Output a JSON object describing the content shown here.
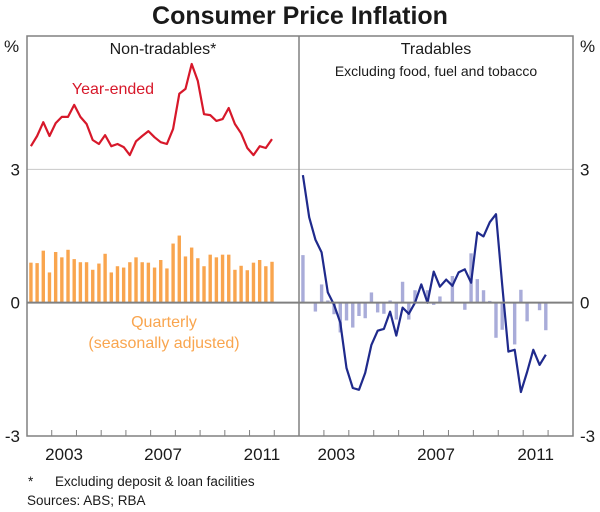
{
  "chart_data": {
    "type": "bar",
    "title": "Consumer Price Inflation",
    "y_unit_left": "%",
    "y_unit_right": "%",
    "ylim": [
      -3,
      6
    ],
    "yticks": [
      3,
      0,
      -3
    ],
    "yticks_labels": [
      "3",
      "0",
      "-3"
    ],
    "xlim": [
      2002,
      2013
    ],
    "xticks_labels": [
      "2003",
      "2007",
      "2011"
    ],
    "xticks_label_years": [
      2003,
      2007,
      2011
    ],
    "grid": true,
    "frequency": "quarterly",
    "start_period": "2002 Q1",
    "end_period": "2011 Q4",
    "panels": [
      {
        "title": "Non-tradables*",
        "subtitle": "",
        "series": [
          {
            "name": "Year-ended",
            "type": "line",
            "color": "#d7182a",
            "values": [
              3.52,
              3.75,
              4.06,
              3.75,
              4.04,
              4.18,
              4.18,
              4.45,
              4.18,
              4.02,
              3.66,
              3.57,
              3.77,
              3.52,
              3.57,
              3.5,
              3.32,
              3.63,
              3.75,
              3.86,
              3.72,
              3.61,
              3.57,
              3.91,
              4.7,
              4.81,
              5.37,
              4.99,
              4.24,
              4.22,
              4.09,
              4.13,
              4.38,
              4.02,
              3.81,
              3.48,
              3.32,
              3.52,
              3.48,
              3.68
            ]
          },
          {
            "name": "Quarterly (seasonally adjusted)",
            "label_lines": [
              "Quarterly",
              "(seasonally adjusted)"
            ],
            "type": "bar",
            "color": "#f9a54e",
            "values": [
              0.9,
              0.89,
              1.17,
              0.68,
              1.14,
              1.02,
              1.19,
              0.98,
              0.91,
              0.91,
              0.74,
              0.88,
              1.1,
              0.68,
              0.82,
              0.79,
              0.91,
              1.02,
              0.91,
              0.9,
              0.79,
              0.96,
              0.77,
              1.33,
              1.51,
              1.04,
              1.24,
              1.0,
              0.82,
              1.08,
              1.02,
              1.08,
              1.08,
              0.74,
              0.83,
              0.73,
              0.9,
              0.96,
              0.82,
              0.92
            ]
          }
        ]
      },
      {
        "title": "Tradables",
        "subtitle": "Excluding food, fuel and tobacco",
        "series": [
          {
            "name": "Year-ended",
            "type": "line",
            "color": "#1f2a8c",
            "values": [
              2.87,
              1.92,
              1.42,
              1.13,
              0.23,
              -0.05,
              -0.45,
              -1.47,
              -1.92,
              -1.96,
              -1.58,
              -0.95,
              -0.63,
              -0.59,
              -0.2,
              -0.74,
              -0.11,
              -0.25,
              0.0,
              0.41,
              0.0,
              0.7,
              0.36,
              0.52,
              0.38,
              0.68,
              0.75,
              0.45,
              1.58,
              1.49,
              1.81,
              1.99,
              0.4,
              -1.1,
              -1.06,
              -2.01,
              -1.56,
              -1.06,
              -1.4,
              -1.17
            ]
          },
          {
            "name": "Quarterly (seasonally adjusted)",
            "type": "bar",
            "color": "#a9acd9",
            "values": [
              1.07,
              0.0,
              -0.2,
              0.41,
              0.05,
              -0.26,
              -0.67,
              -0.4,
              -0.56,
              -0.3,
              -0.35,
              0.23,
              -0.22,
              -0.25,
              0.05,
              -0.38,
              0.47,
              -0.38,
              0.28,
              0.02,
              0.28,
              -0.05,
              0.14,
              0.0,
              0.6,
              0.0,
              -0.16,
              1.11,
              0.53,
              0.28,
              0.04,
              -0.79,
              -0.61,
              0.0,
              -0.94,
              0.29,
              -0.42,
              0.0,
              -0.17,
              -0.62
            ]
          }
        ]
      }
    ],
    "footnote": "Excluding deposit & loan facilities",
    "footnote_marker": "*",
    "sources": "Sources: ABS; RBA"
  }
}
